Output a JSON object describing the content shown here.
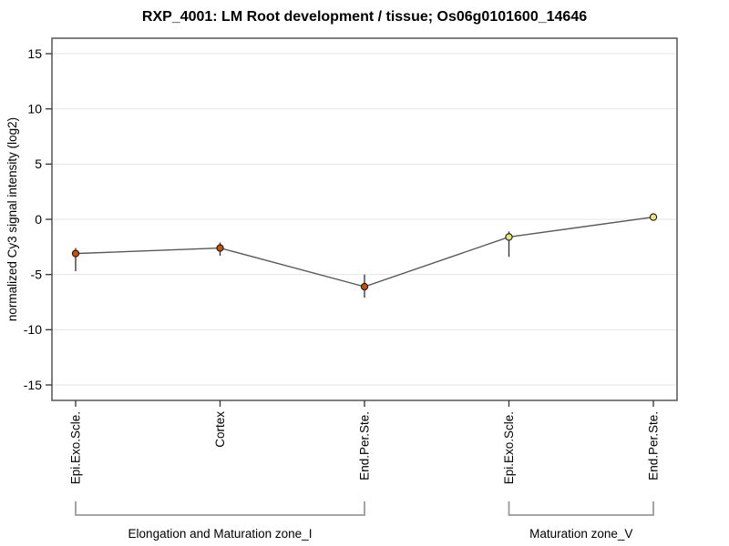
{
  "chart_data": {
    "type": "line",
    "title": "RXP_4001: LM Root development / tissue; Os06g0101600_14646",
    "ylabel": "normalized Cy3 signal intensity (log2)",
    "xlabel": "",
    "categories": [
      "Epi.Exo.Scle.",
      "Cortex",
      "End.Per.Ste.",
      "Epi.Exo.Scle.",
      "End.Per.Ste."
    ],
    "values": [
      -3.1,
      -2.6,
      -6.1,
      -1.6,
      0.2
    ],
    "err_low": [
      -4.7,
      -3.3,
      -7.1,
      -3.4,
      0.05
    ],
    "err_high": [
      -2.6,
      -2.1,
      -5.0,
      -1.1,
      0.35
    ],
    "point_colors": [
      "#cc4f03",
      "#cc4f03",
      "#cc4f03",
      "#e6e67d",
      "#e6e67d"
    ],
    "groups": [
      {
        "label": "Elongation and Maturation zone_I",
        "from": 0,
        "to": 2
      },
      {
        "label": "Maturation zone_V",
        "from": 3,
        "to": 4
      }
    ],
    "yticks": [
      15,
      10,
      5,
      0,
      -5,
      -10,
      -15
    ],
    "ylim": [
      -16.4,
      16.4
    ],
    "grid": true,
    "legend": "none",
    "colors": {
      "line": "#595959",
      "error_bar": "#3a3a3a",
      "marker_stroke": "#1a1a1a",
      "grid": "#e4e4e4",
      "frame": "#555555",
      "tick": "#333333",
      "bracket": "#999999",
      "text": "#000000"
    }
  }
}
